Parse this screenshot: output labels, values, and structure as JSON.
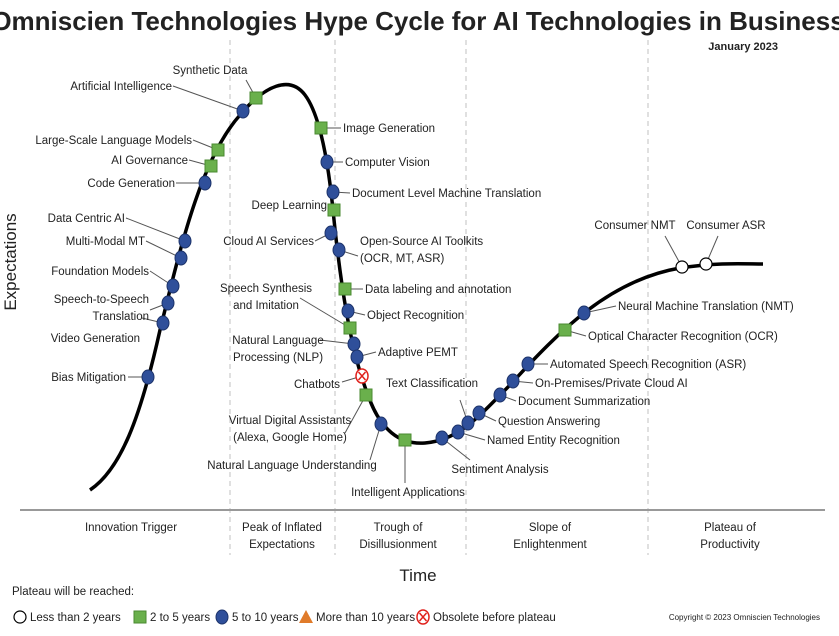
{
  "title": "Omniscien Technologies Hype Cycle for AI Technologies in Business",
  "date": "January 2023",
  "y_axis": "Expectations",
  "x_axis": "Time",
  "phases": [
    [
      "Innovation Trigger"
    ],
    [
      "Peak of Inflated",
      "Expectations"
    ],
    [
      "Trough of",
      "Disillusionment"
    ],
    [
      "Slope of",
      "Enlightenment"
    ],
    [
      "Plateau of",
      "Productivity"
    ]
  ],
  "legend": {
    "title": "Plateau will be reached:",
    "items": [
      {
        "label": "Less than 2 years",
        "shape": "circle-white"
      },
      {
        "label": "2 to 5 years",
        "shape": "square-green"
      },
      {
        "label": "5 to 10 years",
        "shape": "circle-blue"
      },
      {
        "label": "More than 10 years",
        "shape": "triangle-orange"
      },
      {
        "label": "Obsolete before plateau",
        "shape": "circle-x-red"
      }
    ]
  },
  "copyright": "Copyright © 2023 Omniscien Technologies",
  "colors": {
    "green": "#6ab04c",
    "blue": "#2f4f9a",
    "orange": "#e07b2a",
    "red": "#e0201b"
  },
  "technologies": [
    {
      "label": [
        "Bias Mitigation"
      ],
      "plateau": "5 to 10 years"
    },
    {
      "label": [
        "Video Generation"
      ],
      "plateau": "5 to 10 years"
    },
    {
      "label": [
        "Speech-to-Speech",
        "Translation"
      ],
      "plateau": "5 to 10 years"
    },
    {
      "label": [
        "Foundation Models"
      ],
      "plateau": "5 to 10 years"
    },
    {
      "label": [
        "Multi-Modal MT"
      ],
      "plateau": "5 to 10 years"
    },
    {
      "label": [
        "Data Centric AI"
      ],
      "plateau": "5 to 10 years"
    },
    {
      "label": [
        "Code Generation"
      ],
      "plateau": "5 to 10 years"
    },
    {
      "label": [
        "AI Governance"
      ],
      "plateau": "2 to 5 years"
    },
    {
      "label": [
        "Large-Scale Language Models"
      ],
      "plateau": "2 to 5 years"
    },
    {
      "label": [
        "Artificial Intelligence"
      ],
      "plateau": "5 to 10 years"
    },
    {
      "label": [
        "Synthetic Data"
      ],
      "plateau": "2 to 5 years"
    },
    {
      "label": [
        "Image Generation"
      ],
      "plateau": "2 to 5 years"
    },
    {
      "label": [
        "Computer Vision"
      ],
      "plateau": "5 to 10 years"
    },
    {
      "label": [
        "Document Level Machine Translation"
      ],
      "plateau": "5 to 10 years"
    },
    {
      "label": [
        "Deep Learning"
      ],
      "plateau": "2 to 5 years"
    },
    {
      "label": [
        "Cloud AI Services"
      ],
      "plateau": "5 to 10 years"
    },
    {
      "label": [
        "Open-Source AI Toolkits",
        "(OCR, MT, ASR)"
      ],
      "plateau": "5 to 10 years"
    },
    {
      "label": [
        "Data labeling and annotation"
      ],
      "plateau": "2 to 5 years"
    },
    {
      "label": [
        "Object Recognition"
      ],
      "plateau": "5 to 10 years"
    },
    {
      "label": [
        "Speech Synthesis",
        "and Imitation"
      ],
      "plateau": "2 to 5 years"
    },
    {
      "label": [
        "Natural Language",
        "Processing (NLP)"
      ],
      "plateau": "5 to 10 years"
    },
    {
      "label": [
        "Adaptive PEMT"
      ],
      "plateau": "5 to 10 years"
    },
    {
      "label": [
        "Chatbots"
      ],
      "plateau": "Obsolete before plateau"
    },
    {
      "label": [
        "Virtual Digital Assistants",
        "(Alexa, Google Home)"
      ],
      "plateau": "2 to 5 years"
    },
    {
      "label": [
        "Natural Language Understanding"
      ],
      "plateau": "5 to 10 years"
    },
    {
      "label": [
        "Intelligent Applications"
      ],
      "plateau": "2 to 5 years"
    },
    {
      "label": [
        "Sentiment Analysis"
      ],
      "plateau": "5 to 10 years"
    },
    {
      "label": [
        "Named Entity Recognition"
      ],
      "plateau": "5 to 10 years"
    },
    {
      "label": [
        "Text Classification"
      ],
      "plateau": "5 to 10 years"
    },
    {
      "label": [
        "Question Answering"
      ],
      "plateau": "5 to 10 years"
    },
    {
      "label": [
        "Document Summarization"
      ],
      "plateau": "5 to 10 years"
    },
    {
      "label": [
        "On-Premises/Private Cloud AI"
      ],
      "plateau": "5 to 10 years"
    },
    {
      "label": [
        "Automated Speech Recognition (ASR)"
      ],
      "plateau": "5 to 10 years"
    },
    {
      "label": [
        "Optical Character Recognition (OCR)"
      ],
      "plateau": "2 to 5 years"
    },
    {
      "label": [
        "Neural Machine Translation (NMT)"
      ],
      "plateau": "5 to 10 years"
    },
    {
      "label": [
        "Consumer NMT"
      ],
      "plateau": "Less than 2 years"
    },
    {
      "label": [
        "Consumer ASR"
      ],
      "plateau": "Less than 2 years"
    }
  ]
}
